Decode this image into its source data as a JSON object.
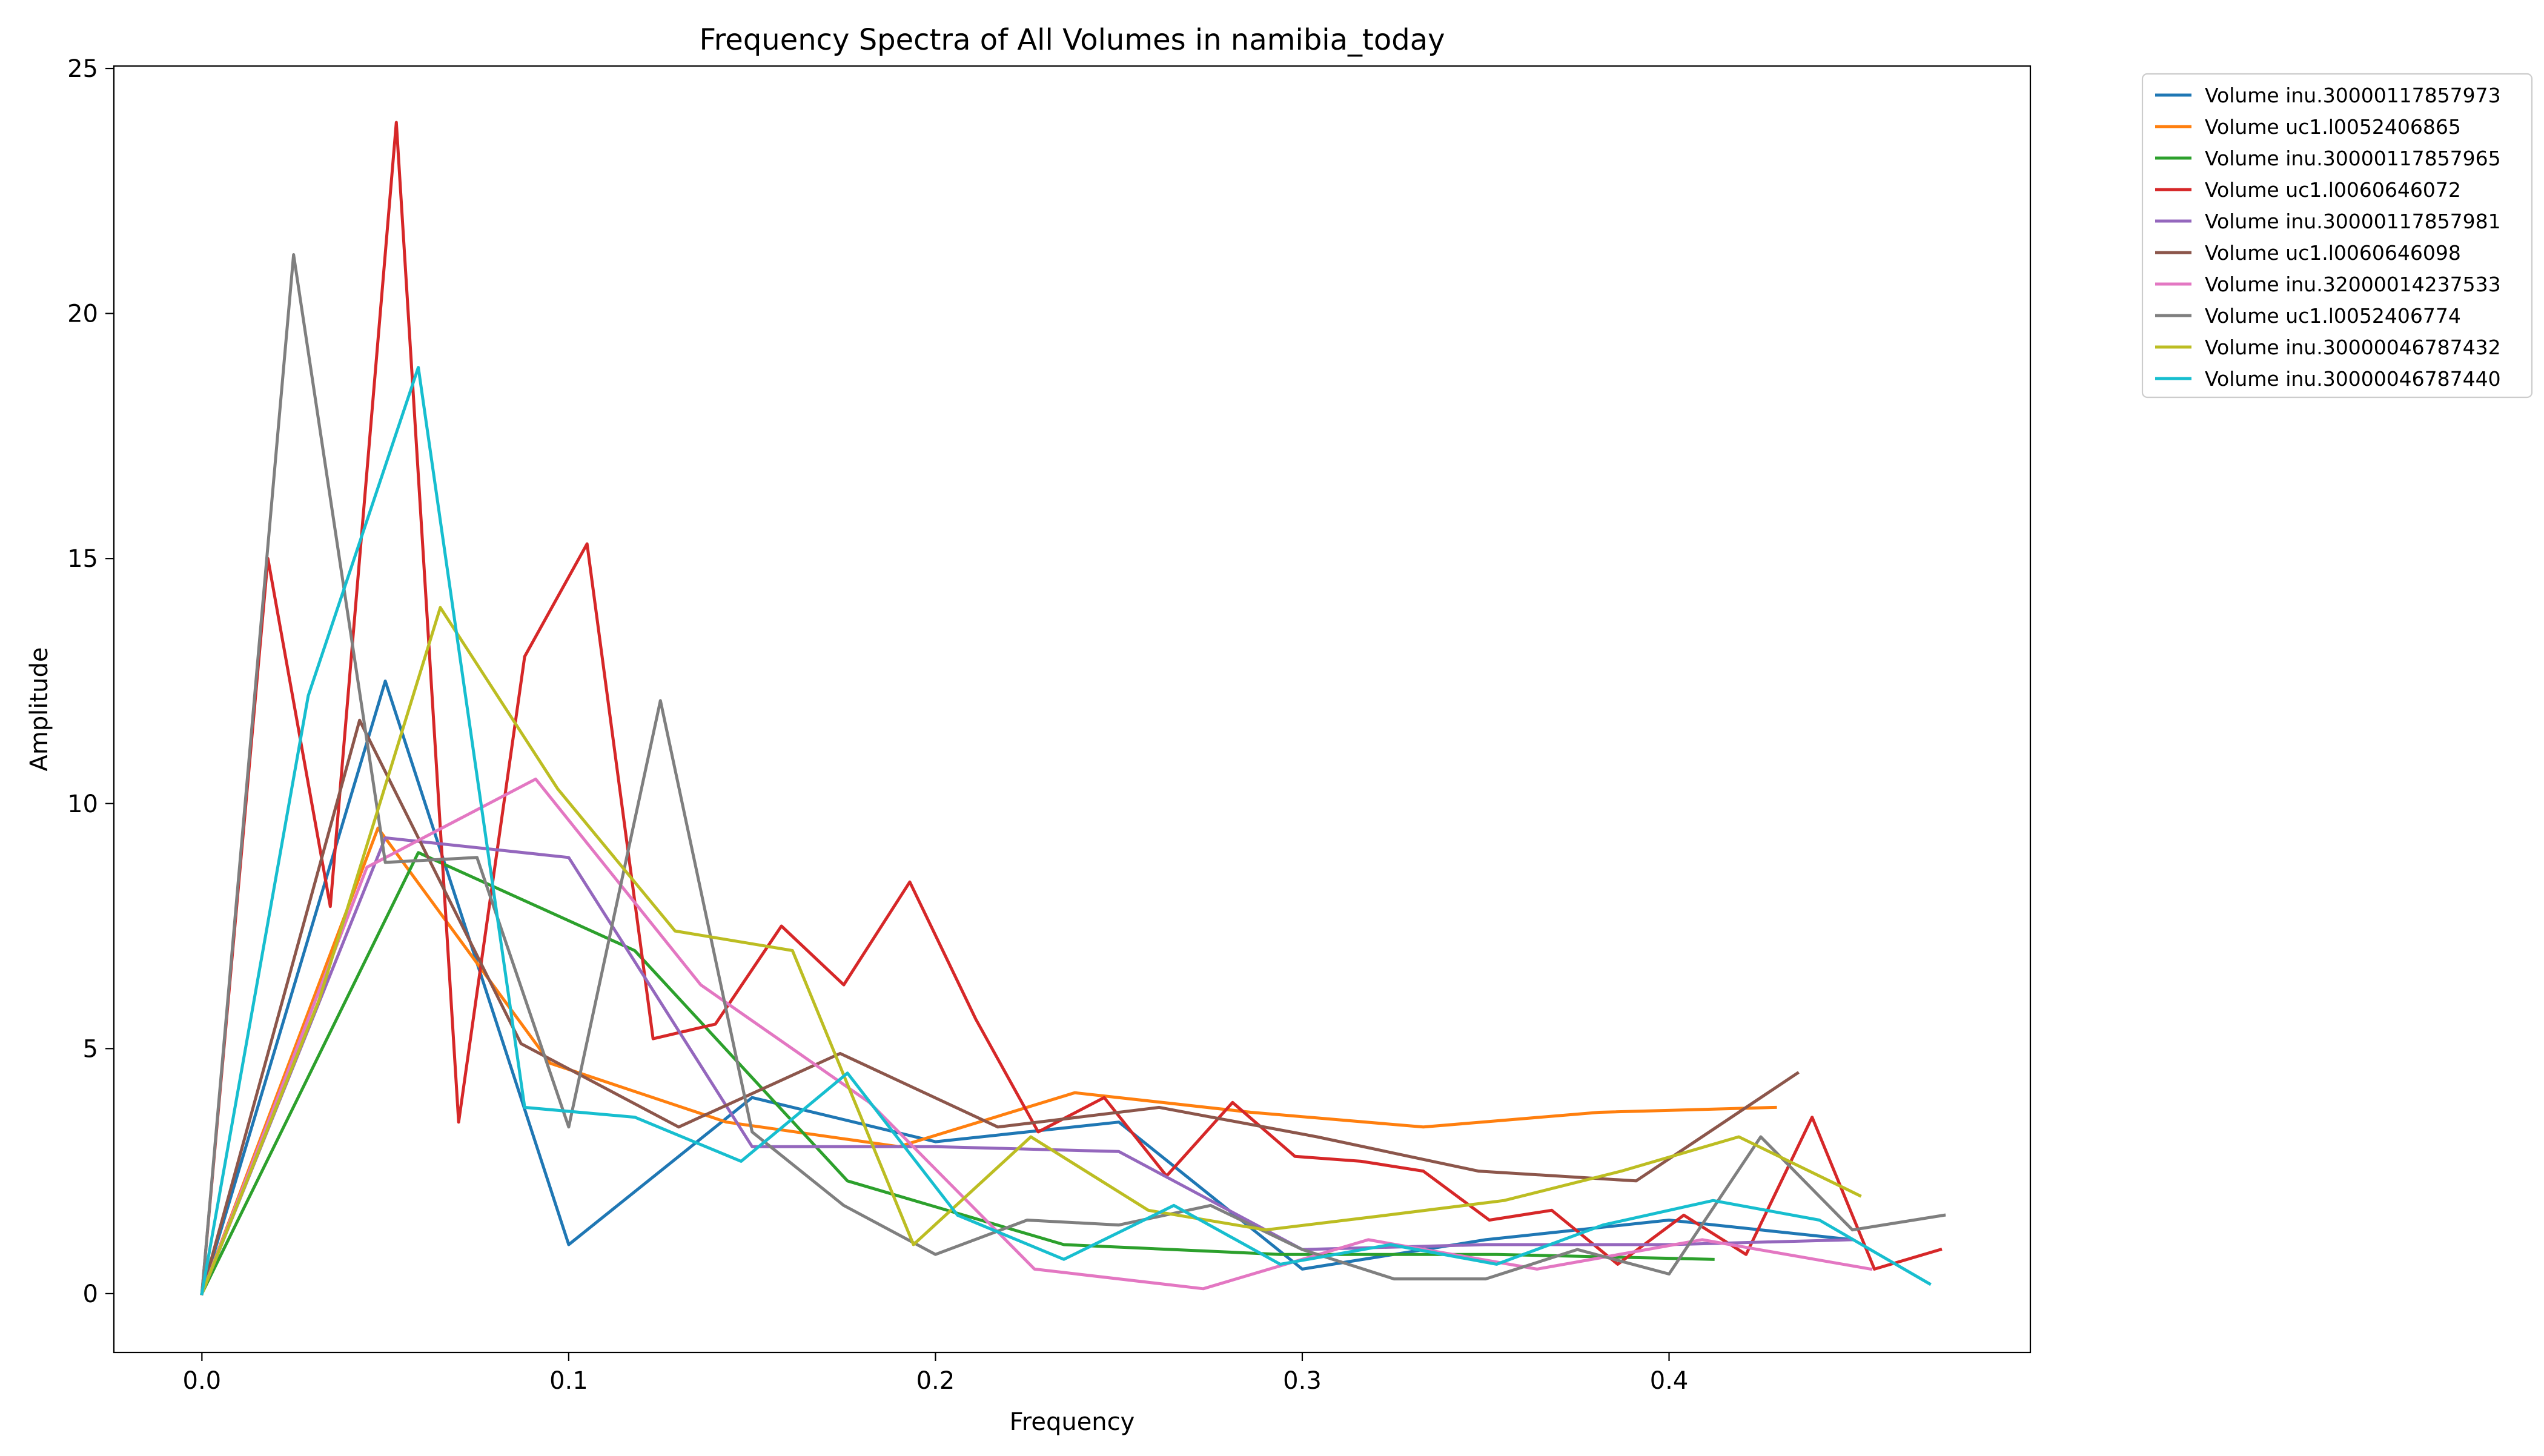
{
  "chart_data": {
    "type": "line",
    "title": "Frequency Spectra of All Volumes in namibia_today",
    "xlabel": "Frequency",
    "ylabel": "Amplitude",
    "xlim": [
      -0.024,
      0.4985
    ],
    "ylim": [
      -1.2,
      25.05
    ],
    "xticks": [
      0.0,
      0.1,
      0.2,
      0.3,
      0.4
    ],
    "xtick_labels": [
      "0.0",
      "0.1",
      "0.2",
      "0.3",
      "0.4"
    ],
    "yticks": [
      0,
      5,
      10,
      15,
      20,
      25
    ],
    "ytick_labels": [
      "0",
      "5",
      "10",
      "15",
      "20",
      "25"
    ],
    "grid": false,
    "legend_position": "outside-top-right",
    "series": [
      {
        "name": "Volume inu.30000117857973",
        "color": "#1f77b4",
        "x": [
          0.0,
          0.05,
          0.1,
          0.15,
          0.2,
          0.25,
          0.3,
          0.35,
          0.4,
          0.45
        ],
        "y": [
          0.0,
          12.5,
          1.0,
          4.0,
          3.1,
          3.5,
          0.5,
          1.1,
          1.5,
          1.1
        ]
      },
      {
        "name": "Volume uc1.l0052406865",
        "color": "#ff7f0e",
        "x": [
          0.0,
          0.048,
          0.095,
          0.143,
          0.19,
          0.238,
          0.286,
          0.333,
          0.381,
          0.429
        ],
        "y": [
          0.0,
          9.5,
          4.7,
          3.5,
          3.0,
          4.1,
          3.7,
          3.4,
          3.7,
          3.8
        ]
      },
      {
        "name": "Volume inu.30000117857965",
        "color": "#2ca02c",
        "x": [
          0.0,
          0.059,
          0.118,
          0.176,
          0.235,
          0.294,
          0.353,
          0.412
        ],
        "y": [
          0.0,
          9.0,
          7.0,
          2.3,
          1.0,
          0.8,
          0.8,
          0.7
        ]
      },
      {
        "name": "Volume uc1.l0060646072",
        "color": "#d62728",
        "x": [
          0.0,
          0.018,
          0.035,
          0.053,
          0.07,
          0.088,
          0.105,
          0.123,
          0.14,
          0.158,
          0.175,
          0.193,
          0.211,
          0.228,
          0.246,
          0.263,
          0.281,
          0.298,
          0.316,
          0.333,
          0.351,
          0.368,
          0.386,
          0.404,
          0.421,
          0.439,
          0.456,
          0.474
        ],
        "y": [
          0.0,
          15.0,
          7.9,
          23.9,
          3.5,
          13.0,
          15.3,
          5.2,
          5.5,
          7.5,
          6.3,
          8.4,
          5.6,
          3.3,
          4.0,
          2.4,
          3.9,
          2.8,
          2.7,
          2.5,
          1.5,
          1.7,
          0.6,
          1.6,
          0.8,
          3.6,
          0.5,
          0.9
        ]
      },
      {
        "name": "Volume inu.30000117857981",
        "color": "#9467bd",
        "x": [
          0.0,
          0.05,
          0.1,
          0.15,
          0.2,
          0.25,
          0.3,
          0.35,
          0.4,
          0.45
        ],
        "y": [
          0.0,
          9.3,
          8.9,
          3.0,
          3.0,
          2.9,
          0.9,
          1.0,
          1.0,
          1.1
        ]
      },
      {
        "name": "Volume uc1.l0060646098",
        "color": "#8c564b",
        "x": [
          0.0,
          0.043,
          0.087,
          0.13,
          0.174,
          0.217,
          0.261,
          0.304,
          0.348,
          0.391,
          0.435
        ],
        "y": [
          0.0,
          11.7,
          5.1,
          3.4,
          4.9,
          3.4,
          3.8,
          3.2,
          2.5,
          2.3,
          4.5
        ]
      },
      {
        "name": "Volume inu.32000014237533",
        "color": "#e377c2",
        "x": [
          0.0,
          0.045,
          0.091,
          0.136,
          0.182,
          0.227,
          0.273,
          0.318,
          0.364,
          0.409,
          0.455
        ],
        "y": [
          0.0,
          8.7,
          10.5,
          6.3,
          3.9,
          0.5,
          0.1,
          1.1,
          0.5,
          1.1,
          0.5
        ]
      },
      {
        "name": "Volume uc1.l0052406774",
        "color": "#7f7f7f",
        "x": [
          0.0,
          0.025,
          0.05,
          0.075,
          0.1,
          0.125,
          0.15,
          0.175,
          0.2,
          0.225,
          0.25,
          0.275,
          0.3,
          0.325,
          0.35,
          0.375,
          0.4,
          0.425,
          0.45,
          0.475
        ],
        "y": [
          0.0,
          21.2,
          8.8,
          8.9,
          3.4,
          12.1,
          3.3,
          1.8,
          0.8,
          1.5,
          1.4,
          1.8,
          0.9,
          0.3,
          0.3,
          0.9,
          0.4,
          3.2,
          1.3,
          1.6
        ]
      },
      {
        "name": "Volume inu.30000046787432",
        "color": "#bcbd22",
        "x": [
          0.0,
          0.032,
          0.065,
          0.097,
          0.129,
          0.161,
          0.194,
          0.226,
          0.258,
          0.29,
          0.323,
          0.355,
          0.387,
          0.419,
          0.452
        ],
        "y": [
          0.0,
          6.0,
          14.0,
          10.3,
          7.4,
          7.0,
          1.0,
          3.2,
          1.7,
          1.3,
          1.6,
          1.9,
          2.5,
          3.2,
          2.0
        ]
      },
      {
        "name": "Volume inu.30000046787440",
        "color": "#17becf",
        "x": [
          0.0,
          0.029,
          0.059,
          0.088,
          0.118,
          0.147,
          0.176,
          0.206,
          0.235,
          0.265,
          0.294,
          0.324,
          0.353,
          0.382,
          0.412,
          0.441,
          0.471
        ],
        "y": [
          0.0,
          12.2,
          18.9,
          3.8,
          3.6,
          2.7,
          4.5,
          1.6,
          0.7,
          1.8,
          0.6,
          1.0,
          0.6,
          1.4,
          1.9,
          1.5,
          0.2
        ]
      }
    ]
  }
}
